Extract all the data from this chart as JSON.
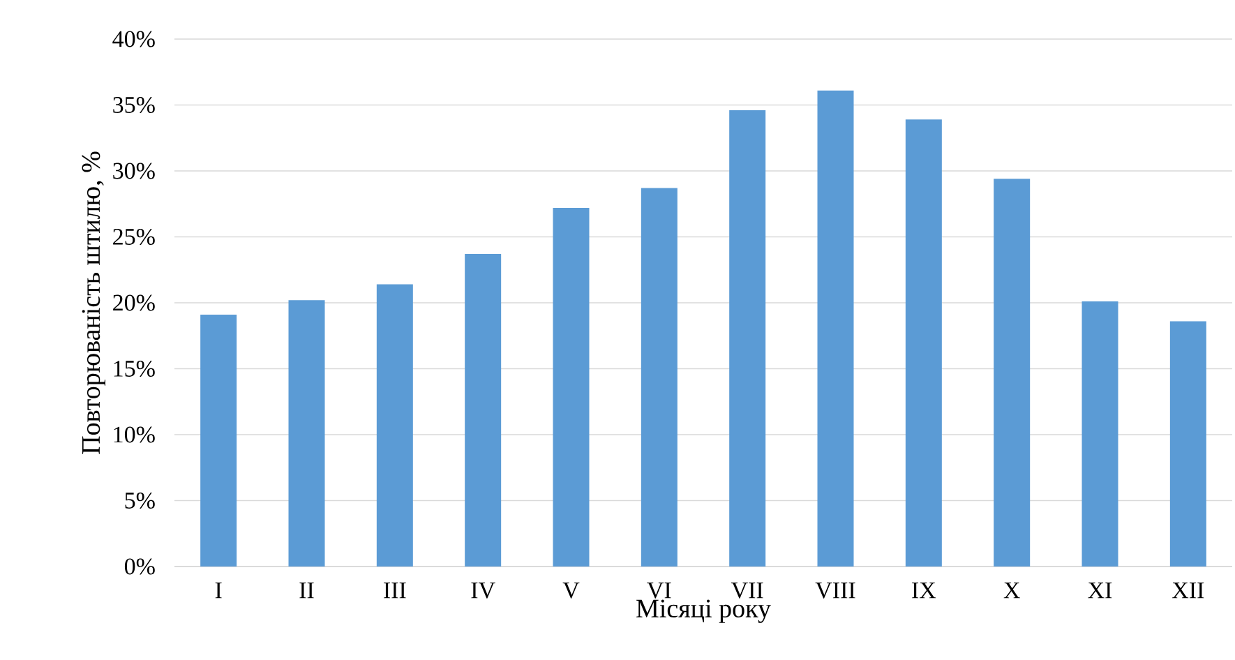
{
  "chart_data": {
    "type": "bar",
    "xlabel": "Місяці року",
    "ylabel": "Повторюваність штилю, %",
    "categories": [
      "I",
      "II",
      "III",
      "IV",
      "V",
      "VI",
      "VII",
      "VIII",
      "IX",
      "X",
      "XI",
      "XII"
    ],
    "values": [
      19.1,
      20.2,
      21.4,
      23.7,
      27.2,
      28.7,
      34.6,
      36.1,
      33.9,
      29.4,
      20.1,
      18.6
    ],
    "color": "#5b9bd5",
    "ylim": [
      0,
      40
    ],
    "yticks": [
      {
        "value": 0,
        "label": "0%"
      },
      {
        "value": 5,
        "label": "5%"
      },
      {
        "value": 10,
        "label": "10%"
      },
      {
        "value": 15,
        "label": "15%"
      },
      {
        "value": 20,
        "label": "20%"
      },
      {
        "value": 25,
        "label": "25%"
      },
      {
        "value": 30,
        "label": "30%"
      },
      {
        "value": 35,
        "label": "35%"
      },
      {
        "value": 40,
        "label": "40%"
      }
    ],
    "grid": "y"
  }
}
